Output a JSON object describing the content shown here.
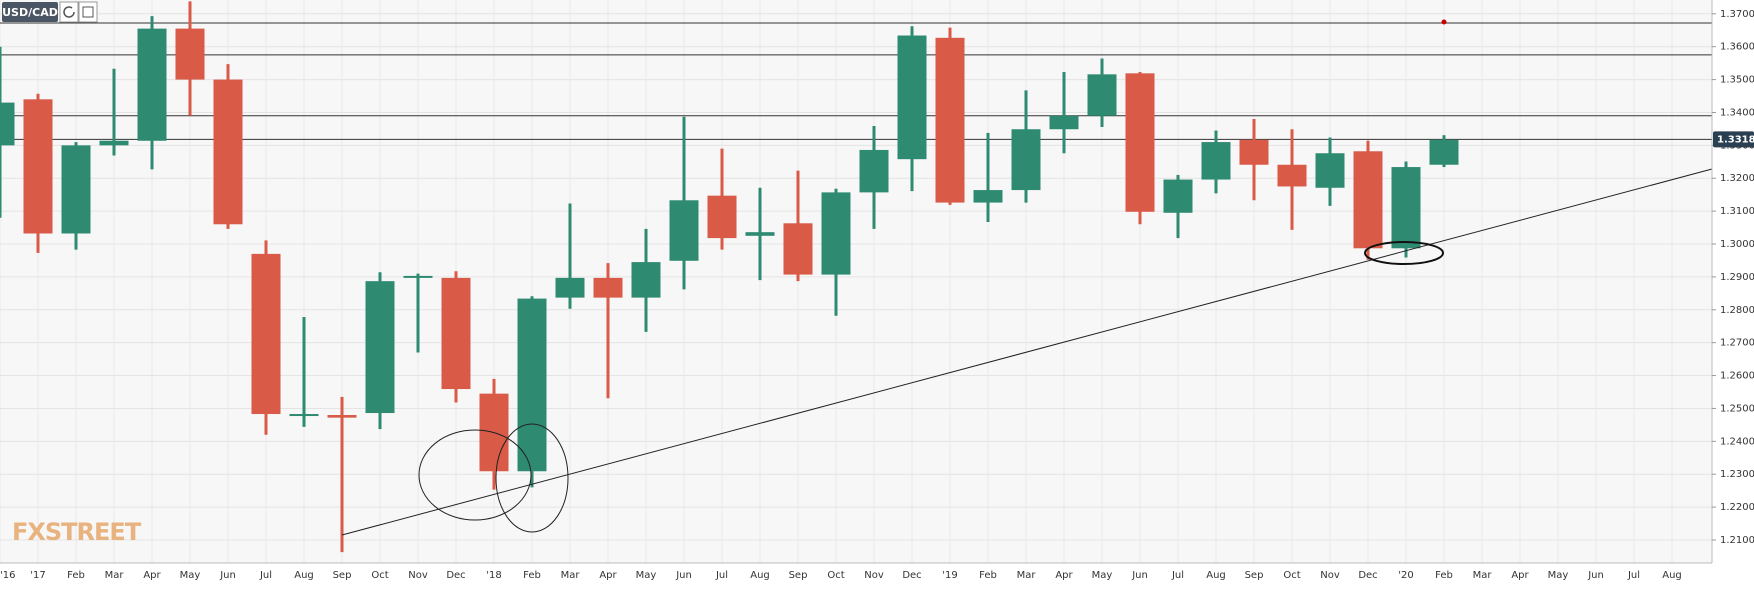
{
  "chart_data": {
    "type": "candlestick",
    "title": "USD/CAD",
    "watermark": "FXSTREET",
    "categories": [
      "'16",
      "'17",
      "Feb",
      "Mar",
      "Apr",
      "May",
      "Jun",
      "Jul",
      "Aug",
      "Sep",
      "Oct",
      "Nov",
      "Dec",
      "'18",
      "Feb",
      "Mar",
      "Apr",
      "May",
      "Jun",
      "Jul",
      "Aug",
      "Sep",
      "Oct",
      "Nov",
      "Dec",
      "'19",
      "Feb",
      "Mar",
      "Apr",
      "May",
      "Jun",
      "Jul",
      "Aug",
      "Sep",
      "Oct",
      "Nov",
      "Dec",
      "'20",
      "Feb",
      "Mar",
      "Apr",
      "May",
      "Jun",
      "Jul",
      "Aug"
    ],
    "open": [
      1.33,
      1.344,
      1.3032,
      1.33,
      1.3314,
      1.3655,
      1.35,
      1.297,
      1.2478,
      1.248,
      1.2486,
      1.2897,
      1.2897,
      1.2545,
      1.2309,
      1.2837,
      1.2897,
      1.2837,
      1.2949,
      1.3147,
      1.3025,
      1.3063,
      1.2907,
      1.3157,
      1.3258,
      1.3627,
      1.3126,
      1.3164,
      1.3349,
      1.339,
      1.3519,
      1.3095,
      1.3196,
      1.3317,
      1.3241,
      1.3171,
      1.3282,
      1.2987,
      1.3241,
      null,
      null,
      null,
      null,
      null,
      null
    ],
    "high": [
      1.36,
      1.3457,
      1.331,
      1.3533,
      1.3693,
      1.3738,
      1.3547,
      1.3011,
      1.2778,
      1.2535,
      1.2914,
      1.291,
      1.2917,
      1.259,
      1.2841,
      1.3123,
      1.2942,
      1.3046,
      1.3387,
      1.329,
      1.3171,
      1.3223,
      1.3168,
      1.3359,
      1.3662,
      1.3658,
      1.3338,
      1.3467,
      1.3523,
      1.3564,
      1.3523,
      1.321,
      1.3345,
      1.338,
      1.3349,
      1.3324,
      1.3314,
      1.3251,
      1.3331,
      null,
      null,
      null,
      null,
      null,
      null
    ],
    "low": [
      1.308,
      1.2973,
      1.2983,
      1.3269,
      1.3227,
      1.339,
      1.3046,
      1.242,
      1.2444,
      1.2063,
      1.2437,
      1.267,
      1.2518,
      1.2253,
      1.226,
      1.2803,
      1.2531,
      1.2733,
      1.2862,
      1.2983,
      1.289,
      1.2887,
      1.2782,
      1.3046,
      1.3161,
      1.3119,
      1.3067,
      1.3126,
      1.3276,
      1.3356,
      1.306,
      1.3018,
      1.3154,
      1.3133,
      1.3043,
      1.3116,
      1.2952,
      1.2959,
      1.3234,
      null,
      null,
      null,
      null,
      null,
      null
    ],
    "close": [
      1.343,
      1.3032,
      1.33,
      1.3314,
      1.3655,
      1.35,
      1.306,
      1.2483,
      1.2483,
      1.2472,
      1.2887,
      1.2903,
      1.2559,
      1.2309,
      1.2834,
      1.2897,
      1.2837,
      1.2945,
      1.3133,
      1.3018,
      1.3036,
      1.2907,
      1.3157,
      1.3286,
      1.3634,
      1.3126,
      1.3164,
      1.3349,
      1.339,
      1.3516,
      1.3098,
      1.3196,
      1.331,
      1.3241,
      1.3175,
      1.3276,
      1.2987,
      1.3234,
      1.3317,
      null,
      null,
      null,
      null,
      null,
      null
    ],
    "up_color": "#2f8a72",
    "down_color": "#d85a47",
    "ylim": [
      1.203,
      1.3742
    ],
    "yticks": [
      {
        "value": 1.21,
        "label": "1.2100"
      },
      {
        "value": 1.22,
        "label": "1.2200"
      },
      {
        "value": 1.23,
        "label": "1.2300"
      },
      {
        "value": 1.24,
        "label": "1.2400"
      },
      {
        "value": 1.25,
        "label": "1.2500"
      },
      {
        "value": 1.26,
        "label": "1.2600"
      },
      {
        "value": 1.27,
        "label": "1.2700"
      },
      {
        "value": 1.28,
        "label": "1.2800"
      },
      {
        "value": 1.29,
        "label": "1.2900"
      },
      {
        "value": 1.3,
        "label": "1.3000"
      },
      {
        "value": 1.31,
        "label": "1.3100"
      },
      {
        "value": 1.32,
        "label": "1.3200"
      },
      {
        "value": 1.33,
        "label": "1.3300"
      },
      {
        "value": 1.34,
        "label": "1.3400"
      },
      {
        "value": 1.35,
        "label": "1.3500"
      },
      {
        "value": 1.36,
        "label": "1.3600"
      },
      {
        "value": 1.37,
        "label": "1.3700"
      }
    ],
    "levels": [
      1.3672,
      1.3575,
      1.339,
      1.3318
    ],
    "price_tag": {
      "value": 1.3318,
      "label": "1.3318"
    },
    "grid": true
  }
}
